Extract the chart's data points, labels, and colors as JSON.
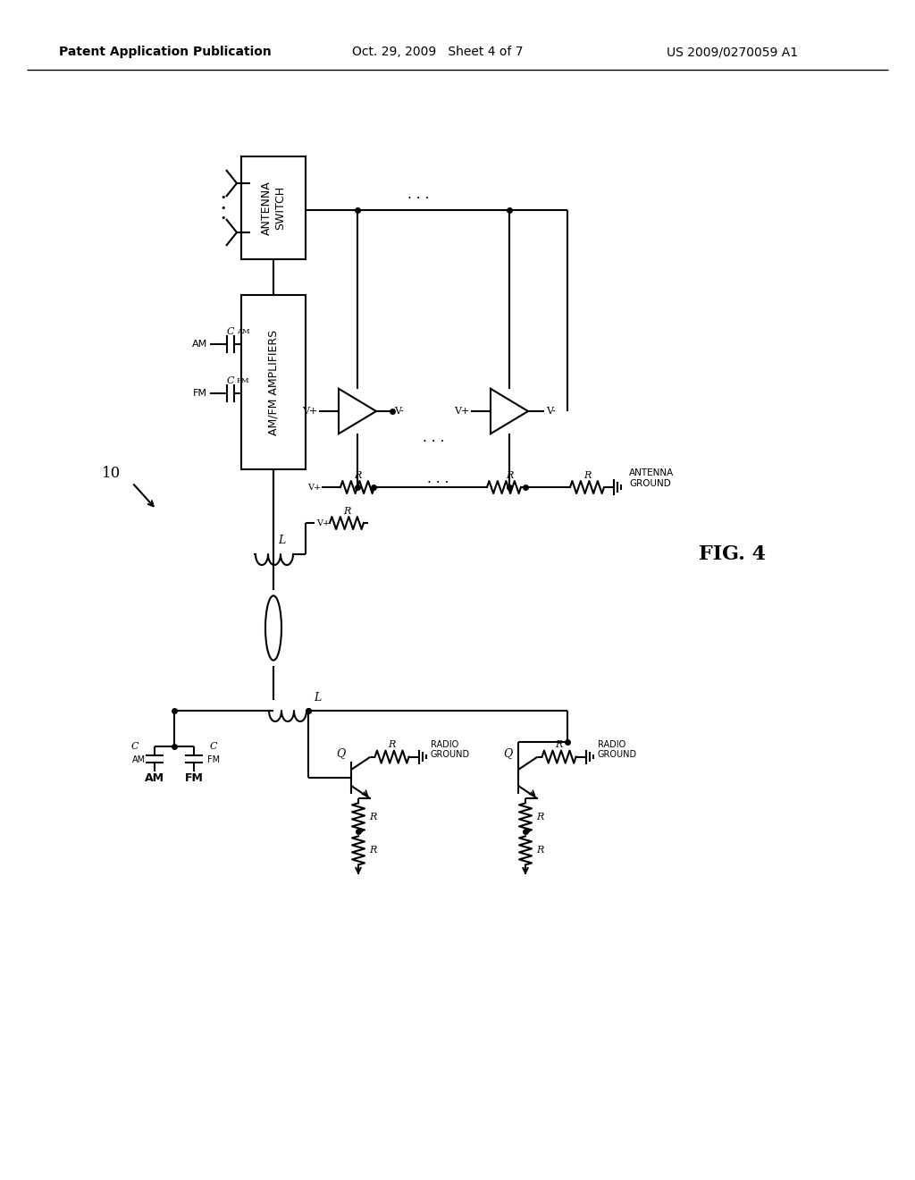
{
  "title_left": "Patent Application Publication",
  "title_center": "Oct. 29, 2009   Sheet 4 of 7",
  "title_right": "US 2009/0270059 A1",
  "fig_label": "FIG. 4",
  "background_color": "#ffffff",
  "line_color": "#000000"
}
